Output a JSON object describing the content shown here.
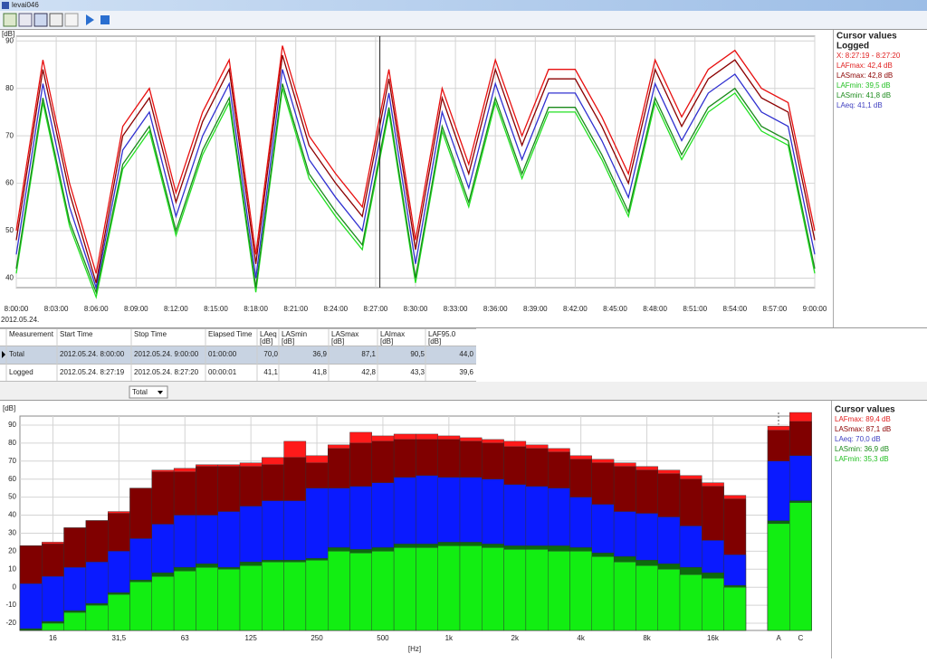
{
  "window": {
    "title": "levai046"
  },
  "chart_data": [
    {
      "type": "line",
      "y_label": "[dB]",
      "date_label": "2012.05.24.",
      "x": [
        "8:00:00",
        "8:02:00",
        "8:04:00",
        "8:06:00",
        "8:08:00",
        "8:10:00",
        "8:12:00",
        "8:14:00",
        "8:16:00",
        "8:18:00",
        "8:20:00",
        "8:22:00",
        "8:24:00",
        "8:26:00",
        "8:28:00",
        "8:30:00",
        "8:32:00",
        "8:34:00",
        "8:36:00",
        "8:38:00",
        "8:40:00",
        "8:42:00",
        "8:44:00",
        "8:46:00",
        "8:48:00",
        "8:50:00",
        "8:52:00",
        "8:54:00",
        "8:56:00",
        "8:58:00",
        "9:00:00"
      ],
      "xlim": [
        "8:00:00",
        "9:00:00"
      ],
      "xticks": [
        "8:00:00",
        "8:03:00",
        "8:06:00",
        "8:09:00",
        "8:12:00",
        "8:15:00",
        "8:18:00",
        "8:21:00",
        "8:24:00",
        "8:27:00",
        "8:30:00",
        "8:33:00",
        "8:36:00",
        "8:39:00",
        "8:42:00",
        "8:45:00",
        "8:48:00",
        "8:51:00",
        "8:54:00",
        "8:57:00",
        "9:00:00"
      ],
      "ylim": [
        38,
        91
      ],
      "yticks": [
        40,
        50,
        60,
        70,
        80,
        90
      ],
      "grid": true,
      "series": [
        {
          "color": "#22e022",
          "values": [
            41,
            77,
            51,
            36,
            63,
            71,
            49,
            66,
            77,
            37,
            80,
            61,
            53,
            46,
            75,
            39,
            71,
            55,
            77,
            61,
            75,
            75,
            65,
            53,
            77,
            65,
            75,
            79,
            71,
            68,
            41
          ]
        },
        {
          "color": "#1a8a1a",
          "values": [
            42,
            78,
            52,
            37,
            64,
            72,
            50,
            67,
            78,
            38,
            81,
            62,
            54,
            47,
            76,
            40,
            72,
            56,
            78,
            62,
            76,
            76,
            66,
            54,
            78,
            66,
            76,
            80,
            72,
            69,
            42
          ]
        },
        {
          "color": "#3030d0",
          "values": [
            45,
            81,
            55,
            38,
            67,
            75,
            53,
            70,
            81,
            40,
            84,
            65,
            57,
            50,
            79,
            43,
            75,
            59,
            81,
            65,
            79,
            79,
            69,
            57,
            81,
            69,
            79,
            83,
            75,
            72,
            45
          ]
        },
        {
          "color": "#8b0000",
          "values": [
            48,
            84,
            58,
            39,
            70,
            78,
            56,
            73,
            84,
            43,
            87,
            68,
            60,
            53,
            82,
            46,
            78,
            62,
            84,
            68,
            82,
            82,
            72,
            60,
            84,
            72,
            82,
            86,
            78,
            75,
            48
          ]
        },
        {
          "color": "#e81010",
          "values": [
            50,
            86,
            60,
            41,
            72,
            80,
            58,
            75,
            86,
            45,
            89,
            70,
            62,
            55,
            84,
            48,
            80,
            64,
            86,
            70,
            84,
            84,
            74,
            62,
            86,
            74,
            84,
            88,
            80,
            77,
            50
          ]
        }
      ],
      "cursor_panel": {
        "title": "Cursor values",
        "subtitle": "Logged",
        "lines": [
          {
            "text": "X: 8:27:19 - 8:27:20",
            "color": "#e02020"
          },
          {
            "text": "LAFmax: 42,4 dB",
            "color": "#e02020"
          },
          {
            "text": "LASmax: 42,8 dB",
            "color": "#8b0000"
          },
          {
            "text": "LAFmin: 39,5 dB",
            "color": "#22c022"
          },
          {
            "text": "LASmin: 41,8 dB",
            "color": "#1a8a1a"
          },
          {
            "text": "LAeq: 41,1 dB",
            "color": "#4040c0"
          }
        ]
      }
    },
    {
      "type": "bar",
      "y_label": "[dB]",
      "x_label": "[Hz]",
      "categories": [
        null,
        "16",
        null,
        null,
        "31,5",
        null,
        null,
        "63",
        null,
        null,
        "125",
        null,
        null,
        "250",
        null,
        null,
        "500",
        null,
        null,
        "1k",
        null,
        null,
        "2k",
        null,
        null,
        "4k",
        null,
        null,
        "8k",
        null,
        null,
        "16k",
        null,
        "A",
        "C"
      ],
      "ylim": [
        -24,
        95
      ],
      "yticks": [
        -20,
        -10,
        0,
        10,
        20,
        30,
        40,
        50,
        60,
        70,
        80,
        90
      ],
      "grid": true,
      "series": [
        {
          "color": "#ff1a1a",
          "values": [
            23,
            25,
            33,
            37,
            42,
            55,
            65,
            66,
            68,
            68,
            69,
            72,
            81,
            73,
            79,
            86,
            84,
            85,
            85,
            84,
            83,
            82,
            81,
            79,
            77,
            73,
            71,
            69,
            67,
            65,
            62,
            58,
            51,
            89.4,
            97
          ]
        },
        {
          "color": "#800000",
          "values": [
            23,
            24,
            33,
            37,
            41,
            55,
            64,
            64,
            67,
            67,
            67,
            68,
            72,
            69,
            77,
            80,
            81,
            82,
            82,
            82,
            81,
            80,
            78,
            77,
            75,
            71,
            69,
            67,
            65,
            63,
            60,
            56,
            49,
            87.1,
            92
          ]
        },
        {
          "color": "#0a1aff",
          "values": [
            2,
            6,
            11,
            14,
            20,
            27,
            35,
            40,
            40,
            42,
            45,
            48,
            48,
            55,
            55,
            56,
            58,
            61,
            62,
            61,
            61,
            60,
            57,
            56,
            55,
            50,
            46,
            42,
            41,
            39,
            34,
            26,
            18,
            70.0,
            73
          ]
        },
        {
          "color": "#0c6a0c",
          "values": [
            -23,
            -19,
            -13,
            -9,
            -3,
            4,
            8,
            11,
            13,
            11,
            14,
            15,
            15,
            16,
            22,
            21,
            22,
            24,
            24,
            25,
            25,
            24,
            23,
            23,
            23,
            22,
            19,
            17,
            15,
            13,
            11,
            8,
            1,
            36.9,
            48
          ]
        },
        {
          "color": "#12ee12",
          "values": [
            -24,
            -20,
            -14,
            -10,
            -4,
            3,
            6,
            9,
            11,
            10,
            12,
            14,
            14,
            15,
            20,
            19,
            20,
            22,
            22,
            23,
            23,
            22,
            21,
            21,
            20,
            20,
            17,
            14,
            12,
            10,
            7,
            5,
            0,
            35.3,
            47
          ]
        }
      ],
      "cursor_panel": {
        "title": "Cursor values",
        "lines": [
          {
            "text": "LAFmax: 89,4 dB",
            "color": "#e02020"
          },
          {
            "text": "LASmax: 87,1 dB",
            "color": "#8b0000"
          },
          {
            "text": "LAeq: 70,0 dB",
            "color": "#4040c0"
          },
          {
            "text": "LASmin: 36,9 dB",
            "color": "#1a8a1a"
          },
          {
            "text": "LAFmin: 35,3 dB",
            "color": "#22c022"
          }
        ]
      }
    }
  ],
  "table": {
    "header": [
      [
        "Measurement"
      ],
      [
        "Start Time"
      ],
      [
        "Stop Time"
      ],
      [
        "Elapsed Time"
      ],
      [
        "LAeq",
        "[dB]"
      ],
      [
        "LASmin",
        "[dB]"
      ],
      [
        "LASmax",
        "[dB]"
      ],
      [
        "LAImax",
        "[dB]"
      ],
      [
        "LAF95.0",
        "[dB]"
      ]
    ],
    "rows": [
      [
        "Total",
        "2012.05.24. 8:00:00",
        "2012.05.24. 9:00:00",
        "01:00:00",
        "70,0",
        "36,9",
        "87,1",
        "90,5",
        "44,0"
      ],
      [
        "Logged",
        "2012.05.24. 8:27:19",
        "2012.05.24. 8:27:20",
        "00:00:01",
        "41,1",
        "41,8",
        "42,8",
        "43,3",
        "39,6"
      ]
    ]
  },
  "selector": "Total"
}
